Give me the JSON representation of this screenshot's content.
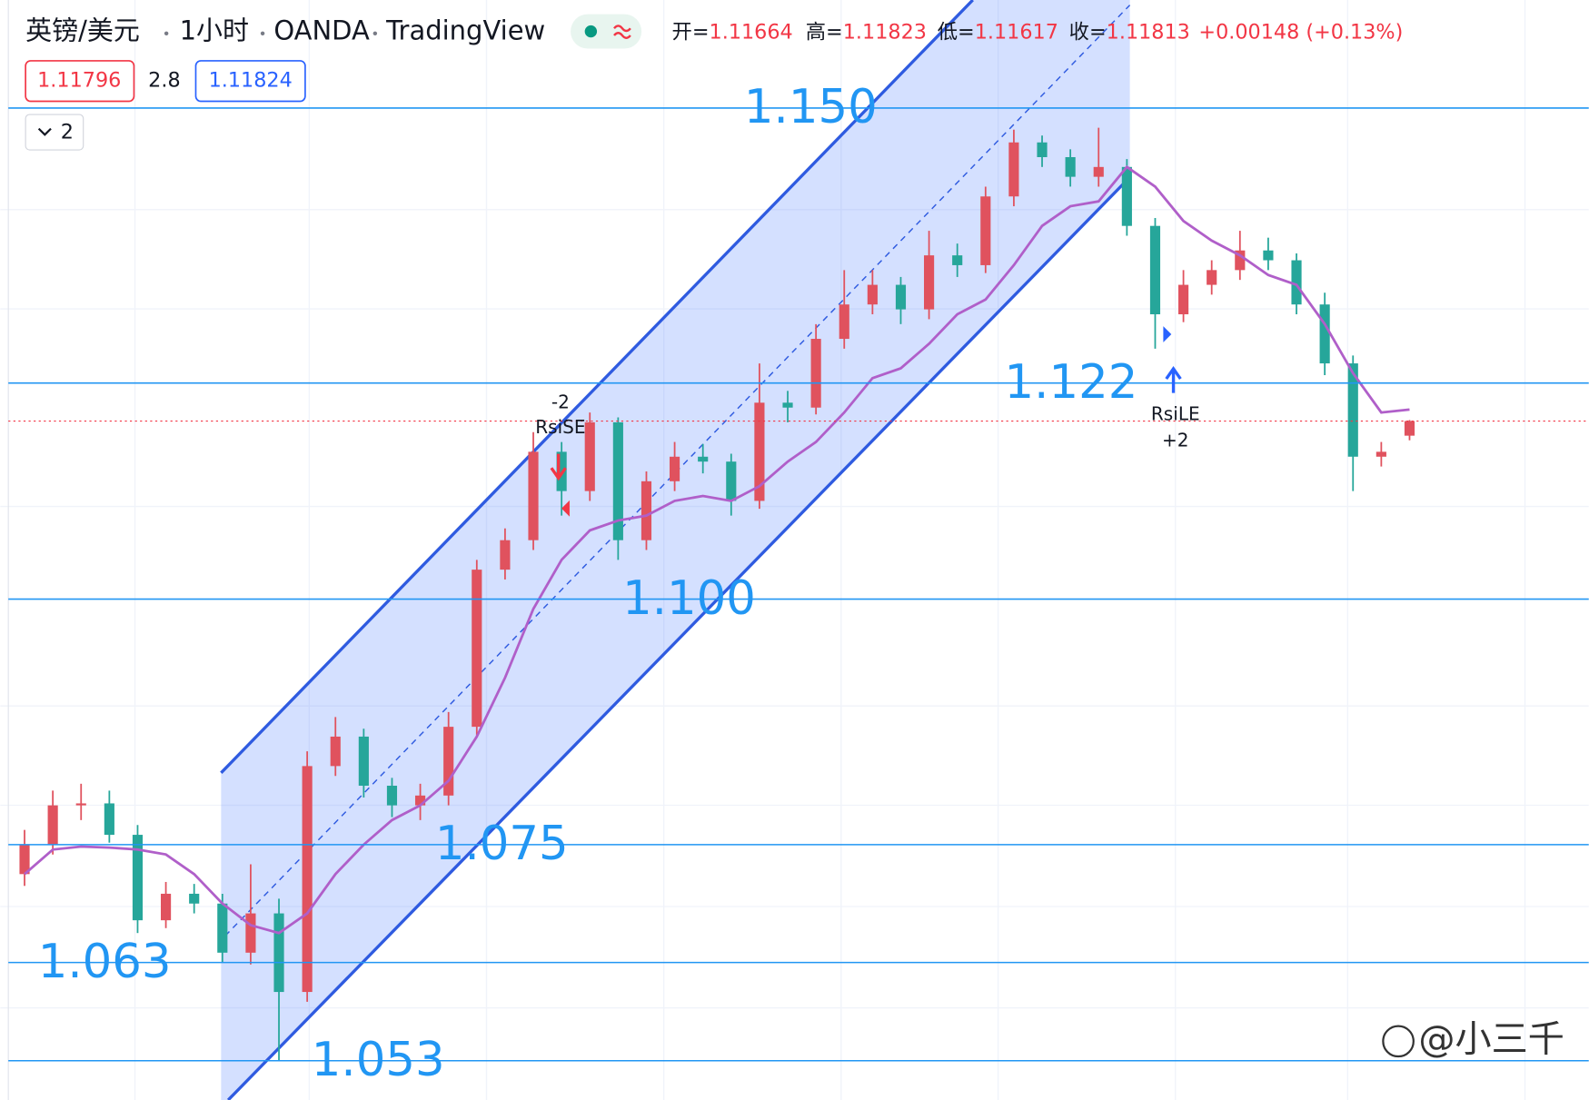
{
  "header": {
    "symbol": "英镑/美元",
    "interval": "1小时",
    "source": "OANDA",
    "brand": "TradingView",
    "ohlc": [
      {
        "label": "开=",
        "value": 1.11664
      },
      {
        "label": "高=",
        "value": 1.11823
      },
      {
        "label": "低=",
        "value": 1.11617
      },
      {
        "label": "收=",
        "value": 1.11813
      }
    ],
    "change": "+0.00148 (+0.13%)",
    "bid": 1.11796,
    "spread": 2.8,
    "ask": 1.11824,
    "indicators_count": 2
  },
  "chart_data": {
    "type": "candlestick",
    "up_color": "#e0525e",
    "down_color": "#26a69a",
    "ylim": [
      1.049,
      1.161
    ],
    "open": [
      1.072,
      1.075,
      1.079,
      1.0792,
      1.076,
      1.0673,
      1.07,
      1.069,
      1.064,
      1.068,
      1.06,
      1.083,
      1.086,
      1.081,
      1.079,
      1.08,
      1.087,
      1.103,
      1.106,
      1.115,
      1.111,
      1.118,
      1.106,
      1.112,
      1.1145,
      1.114,
      1.11,
      1.12,
      1.1195,
      1.1265,
      1.13,
      1.132,
      1.1295,
      1.135,
      1.134,
      1.141,
      1.1465,
      1.145,
      1.143,
      1.144,
      1.138,
      1.129,
      1.132,
      1.1335,
      1.1355,
      1.1345,
      1.13,
      1.124,
      1.1145,
      1.11664
    ],
    "high": [
      1.0765,
      1.0805,
      1.0812,
      1.0805,
      1.077,
      1.0712,
      1.071,
      1.07,
      1.073,
      1.0695,
      1.0845,
      1.088,
      1.0868,
      1.0818,
      1.0812,
      1.0885,
      1.104,
      1.1072,
      1.117,
      1.116,
      1.119,
      1.1185,
      1.113,
      1.116,
      1.1158,
      1.1148,
      1.124,
      1.1212,
      1.128,
      1.1335,
      1.1335,
      1.1328,
      1.1375,
      1.1362,
      1.142,
      1.1478,
      1.1472,
      1.1458,
      1.148,
      1.1448,
      1.1388,
      1.1335,
      1.1345,
      1.1375,
      1.1368,
      1.1352,
      1.1312,
      1.1248,
      1.116,
      1.11823
    ],
    "low": [
      1.0708,
      1.074,
      1.0775,
      1.0752,
      1.066,
      1.0665,
      1.068,
      1.063,
      1.0628,
      1.053,
      1.059,
      1.082,
      1.0798,
      1.0778,
      1.0775,
      1.079,
      1.086,
      1.102,
      1.105,
      1.1085,
      1.11,
      1.104,
      1.105,
      1.111,
      1.1128,
      1.1085,
      1.1092,
      1.118,
      1.1188,
      1.1255,
      1.129,
      1.128,
      1.1285,
      1.1328,
      1.1332,
      1.14,
      1.144,
      1.142,
      1.142,
      1.137,
      1.1255,
      1.1282,
      1.131,
      1.1325,
      1.1335,
      1.129,
      1.1228,
      1.111,
      1.1135,
      1.11617
    ],
    "close": [
      1.075,
      1.079,
      1.0792,
      1.076,
      1.0673,
      1.07,
      1.069,
      1.064,
      1.068,
      1.06,
      1.083,
      1.086,
      1.081,
      1.079,
      1.08,
      1.087,
      1.103,
      1.106,
      1.115,
      1.111,
      1.118,
      1.106,
      1.112,
      1.1145,
      1.114,
      1.11,
      1.12,
      1.1195,
      1.1265,
      1.13,
      1.132,
      1.1295,
      1.135,
      1.134,
      1.141,
      1.1465,
      1.145,
      1.143,
      1.144,
      1.138,
      1.129,
      1.132,
      1.1335,
      1.1355,
      1.1345,
      1.13,
      1.124,
      1.1145,
      1.115,
      1.11813
    ],
    "moving_average": {
      "color": "#b05fc9",
      "values": [
        1.072,
        1.0745,
        1.0748,
        1.0747,
        1.0745,
        1.074,
        1.072,
        1.069,
        1.0668,
        1.066,
        1.068,
        1.072,
        1.075,
        1.0775,
        1.079,
        1.0815,
        1.086,
        1.092,
        1.099,
        1.104,
        1.107,
        1.108,
        1.1085,
        1.11,
        1.1105,
        1.11,
        1.1115,
        1.114,
        1.116,
        1.119,
        1.1225,
        1.1235,
        1.126,
        1.129,
        1.1305,
        1.134,
        1.138,
        1.14,
        1.1405,
        1.144,
        1.142,
        1.1385,
        1.1365,
        1.135,
        1.133,
        1.132,
        1.128,
        1.123,
        1.119,
        1.1193
      ]
    },
    "levels": [
      {
        "value": 1.15,
        "label": "1.150"
      },
      1.122,
      {
        "value": 1.1,
        "label": "1.100"
      },
      1.075,
      1.063,
      1.053
    ],
    "level_color": "#2196f3",
    "signals": [
      {
        "qty": "-2",
        "label": "RsiSE"
      },
      {
        "label": "RsiLE",
        "qty": "+2"
      }
    ]
  },
  "watermark": "@小三千"
}
